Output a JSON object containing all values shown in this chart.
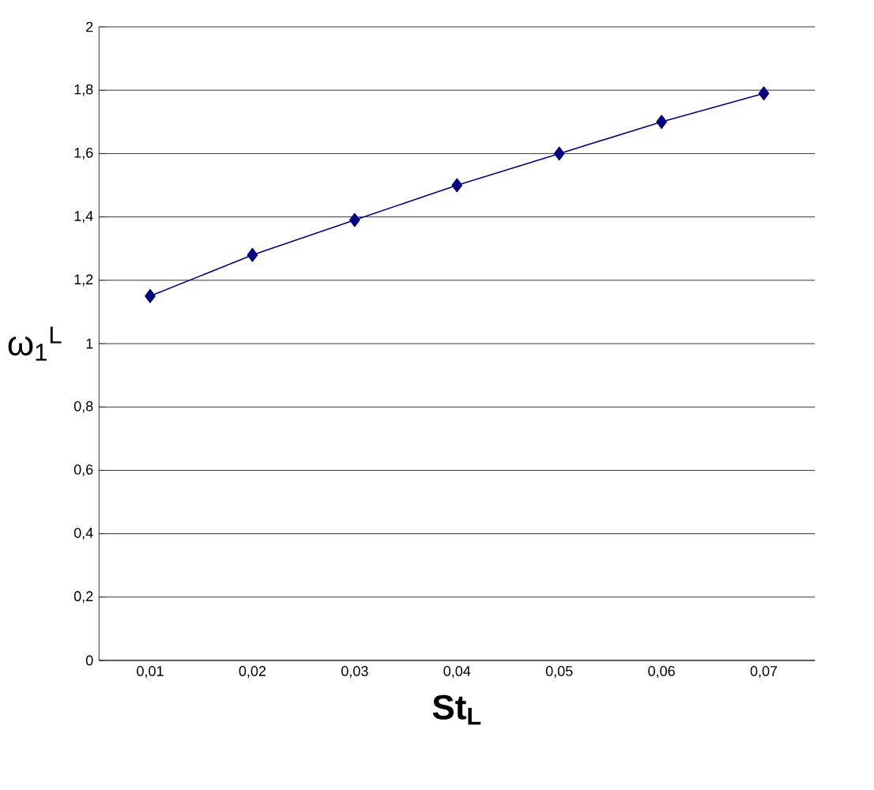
{
  "chart_data": {
    "type": "line",
    "xlabel": "St$_{L}$",
    "ylabel": "ω$_{1}$$^{L}$",
    "categories": [
      "0,01",
      "0,02",
      "0,03",
      "0,04",
      "0,05",
      "0,06",
      "0,07"
    ],
    "series": [
      {
        "color": "#000080",
        "values": [
          1.15,
          1.28,
          1.39,
          1.5,
          1.6,
          1.7,
          1.79
        ]
      }
    ],
    "ylim": [
      0,
      2
    ],
    "yticks": [
      0,
      {
        "value": 0.2,
        "label": "0,2"
      },
      {
        "value": 0.4,
        "label": "0,4"
      },
      {
        "value": 0.6,
        "label": "0,6"
      },
      {
        "value": 0.8,
        "label": "0,8"
      },
      1,
      {
        "value": 1.2,
        "label": "1,2"
      },
      {
        "value": 1.4,
        "label": "1,4"
      },
      {
        "value": 1.6,
        "label": "1,6"
      },
      {
        "value": 1.8,
        "label": "1,8"
      },
      2
    ],
    "grid": "y",
    "marker": "diamond",
    "line_style": "solid"
  }
}
